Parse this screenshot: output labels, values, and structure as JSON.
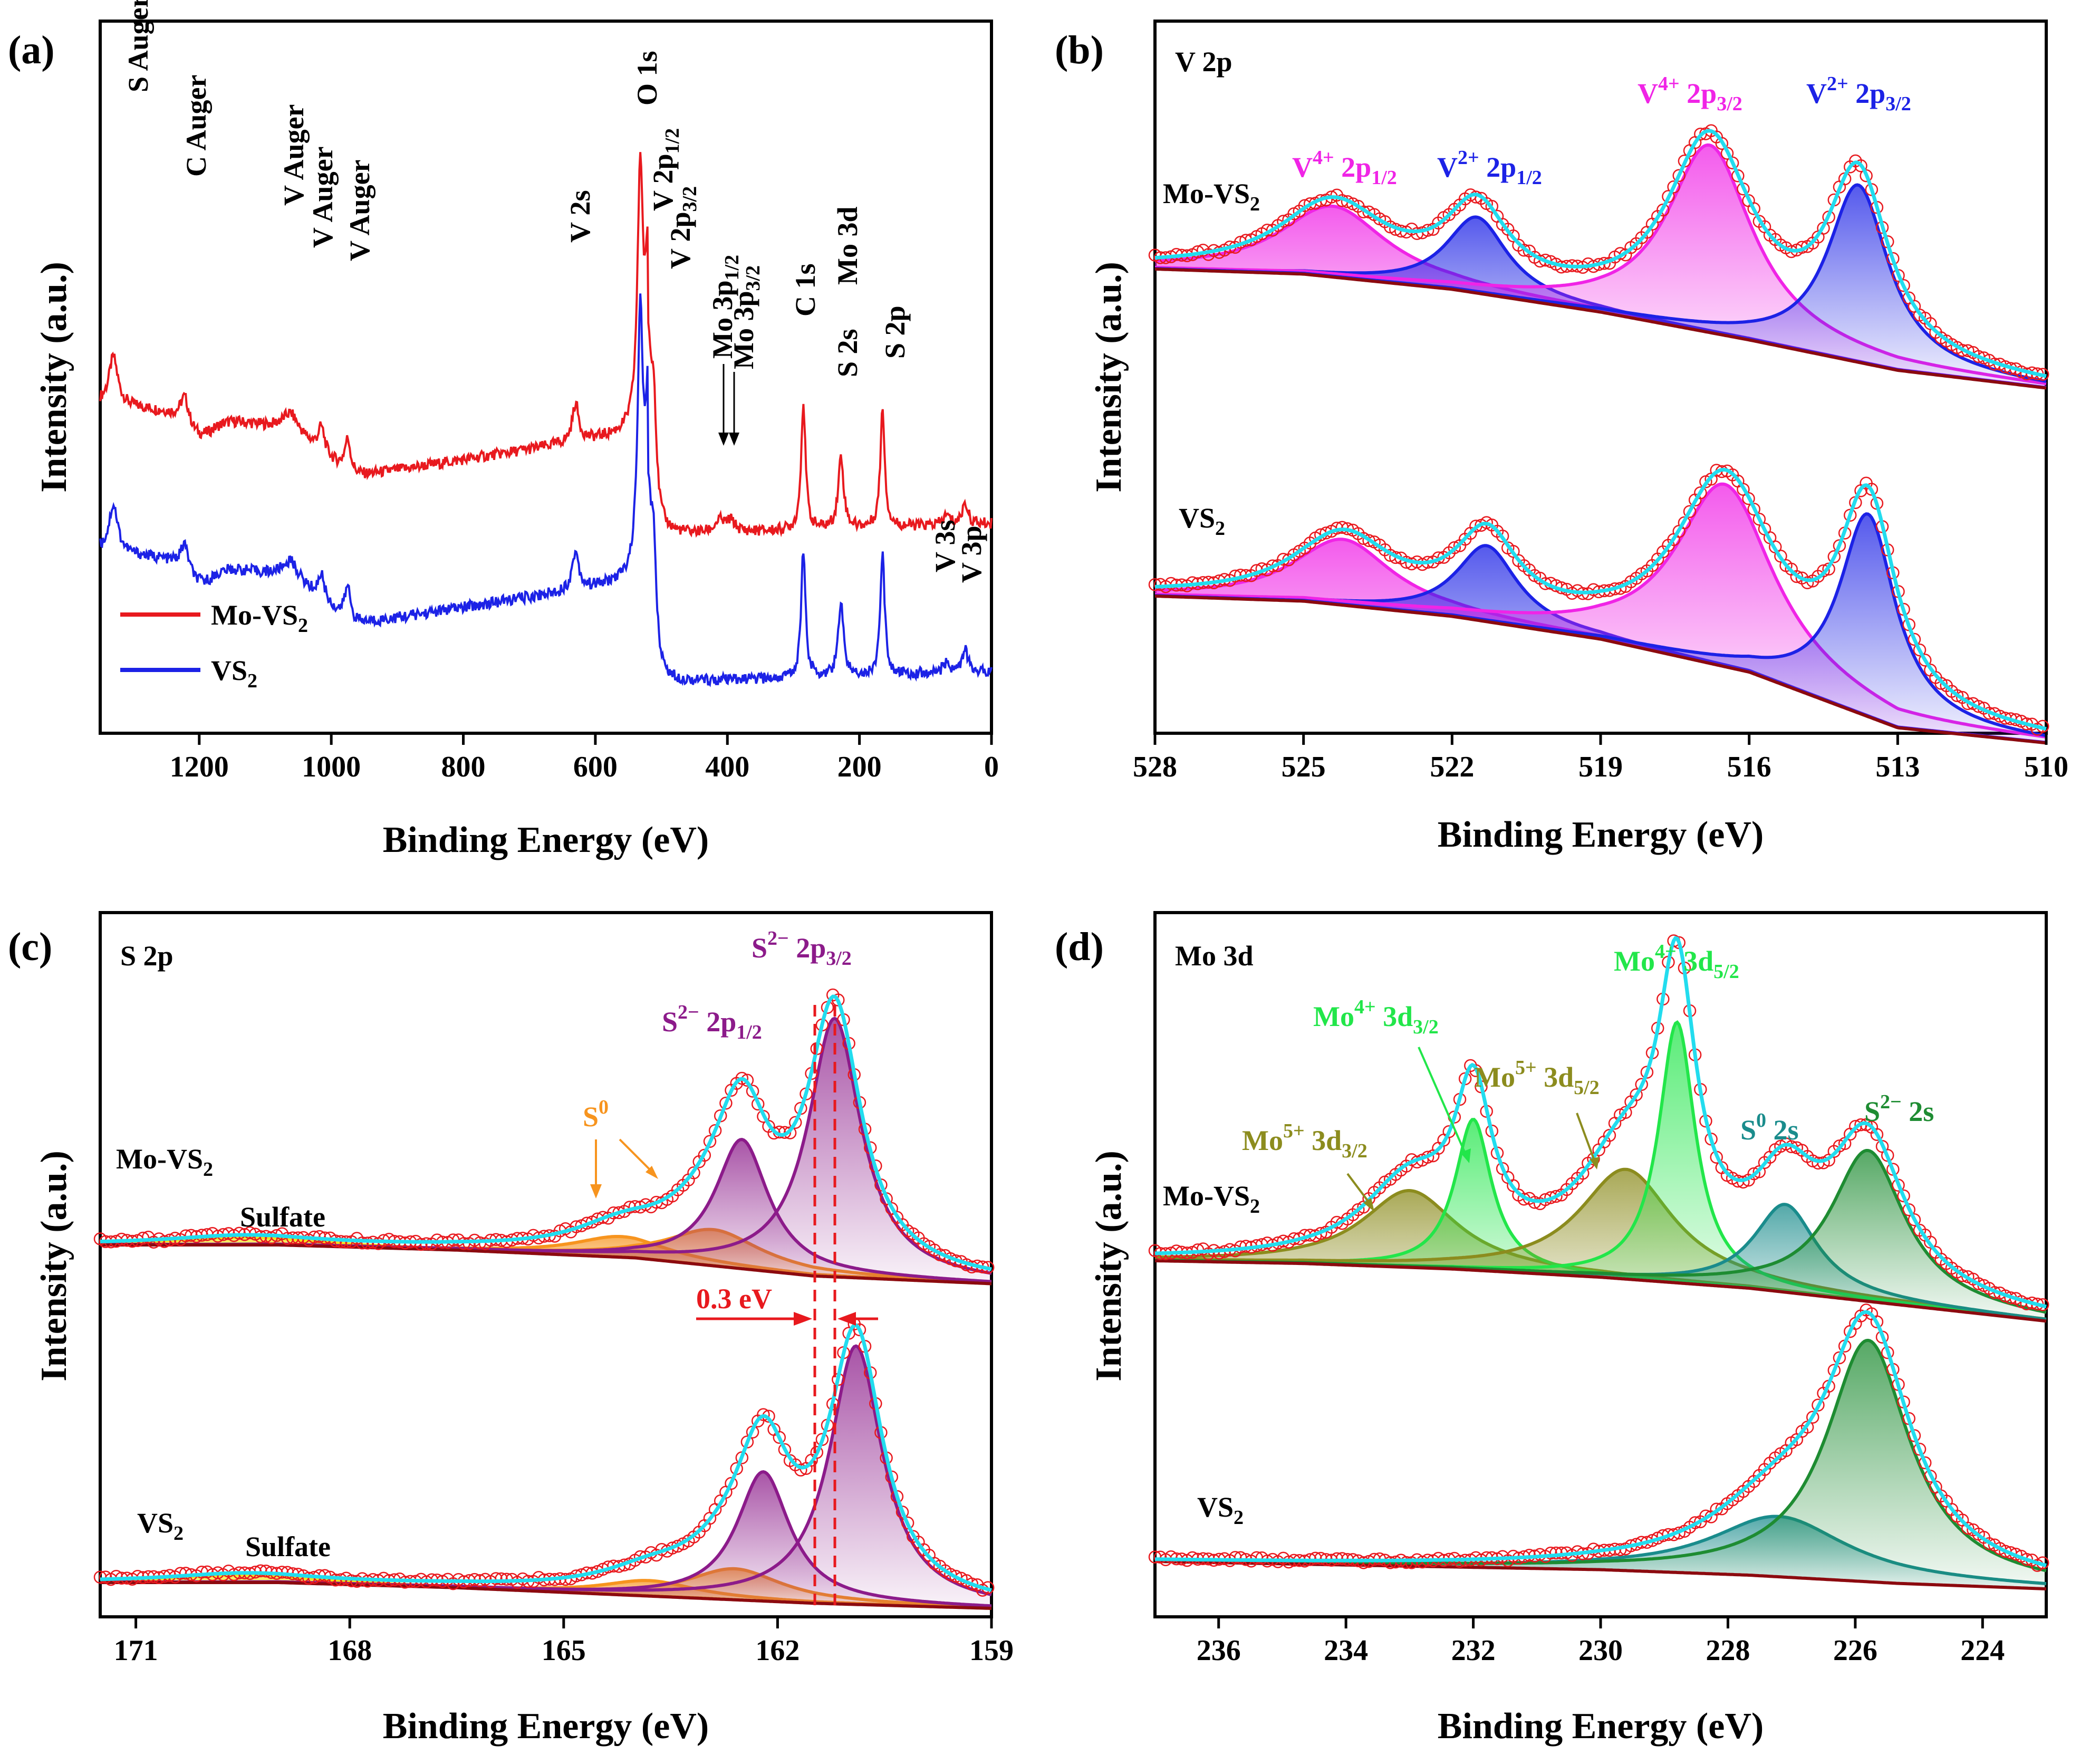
{
  "figure": {
    "panel_labels": [
      "(a)",
      "(b)",
      "(c)",
      "(d)"
    ]
  },
  "colors": {
    "red": "#e8191e",
    "blue": "#1c22e6",
    "cyan": "#22dcee",
    "wine": "#8c0a0f",
    "pink": "#f024e6",
    "purple": "#8c1b8a",
    "orange": "#f7941e",
    "yellow": "#f5e11a",
    "green": "#22e64a",
    "olive": "#8c8c1e",
    "teal": "#1a8c8c",
    "dkgreen": "#1e8c32"
  },
  "chart_data": [
    {
      "id": "a",
      "type": "line",
      "xlabel": "Binding Energy (eV)",
      "ylabel": "Intensity (a.u.)",
      "xlim": [
        1350,
        0
      ],
      "xticks": [
        1200,
        1000,
        800,
        600,
        400,
        200,
        0
      ],
      "series": [
        {
          "name": "Mo-VS2",
          "color": "#e8191e",
          "offset": 1.62
        },
        {
          "name": "VS2",
          "color": "#1c22e6",
          "offset": 0
        }
      ],
      "legend": [
        {
          "main": "Mo-VS",
          "sub": "2"
        },
        {
          "main": "VS",
          "sub": "2"
        }
      ],
      "annotations": [
        {
          "id": "s_auger",
          "text": "S Auger",
          "x": 1330
        },
        {
          "id": "c_auger",
          "text": "C Auger",
          "x": 1223
        },
        {
          "id": "v_aug1",
          "text": "V Auger",
          "x": 1060
        },
        {
          "id": "v_aug2",
          "text": "V Auger",
          "x": 1015
        },
        {
          "id": "v_aug3",
          "text": "V Auger",
          "x": 975
        },
        {
          "id": "v2s",
          "text": "V 2s",
          "x": 630
        },
        {
          "id": "o1s",
          "text": "O 1s",
          "x": 532
        },
        {
          "id": "v2p12",
          "text": "V 2p",
          "sub": "1/2",
          "x": 520
        },
        {
          "id": "v2p32",
          "text": "V 2p",
          "sub": "3/2",
          "x": 513
        },
        {
          "id": "mo3p12",
          "text": "Mo 3p",
          "sub": "1/2",
          "x": 412
        },
        {
          "id": "mo3p32",
          "text": "Mo 3p",
          "sub": "3/2",
          "x": 395
        },
        {
          "id": "c1s",
          "text": "C 1s",
          "x": 285
        },
        {
          "id": "s2s",
          "text": "S 2s",
          "x": 228
        },
        {
          "id": "mo3d",
          "text": "Mo 3d",
          "x": 230
        },
        {
          "id": "s2p",
          "text": "S 2p",
          "x": 163
        },
        {
          "id": "v3s",
          "text": "V 3s",
          "x": 68
        },
        {
          "id": "v3p",
          "text": "V 3p",
          "x": 40
        }
      ]
    },
    {
      "id": "b",
      "type": "line",
      "title": "V 2p",
      "xlabel": "Binding Energy (eV)",
      "ylabel": "Intensity (a.u.)",
      "xlim": [
        528,
        510
      ],
      "xticks": [
        528,
        525,
        522,
        519,
        516,
        513,
        510
      ],
      "samples": [
        {
          "name": "Mo-VS",
          "sub": "2",
          "offset": 1.15,
          "bg": [
            0.0,
            -0.02,
            -0.08,
            -0.17,
            -0.28,
            -0.4,
            -0.47
          ],
          "peaks": [
            {
              "c": 524.4,
              "h": 0.28,
              "w": 1.3,
              "color": "#f024e6",
              "name": "V4+ 2p1/2"
            },
            {
              "c": 521.5,
              "h": 0.3,
              "w": 0.75,
              "color": "#1c22e6",
              "name": "V2+ 2p1/2"
            },
            {
              "c": 516.8,
              "h": 0.74,
              "w": 1.05,
              "color": "#f024e6",
              "name": "V4+ 2p3/2"
            },
            {
              "c": 513.8,
              "h": 0.7,
              "w": 0.75,
              "color": "#1c22e6",
              "name": "V2+ 2p3/2"
            }
          ]
        },
        {
          "name": "VS",
          "sub": "2",
          "offset": 0,
          "bg": [
            0.0,
            -0.02,
            -0.08,
            -0.17,
            -0.3,
            -0.52,
            -0.58
          ],
          "peaks": [
            {
              "c": 524.2,
              "h": 0.26,
              "w": 1.2,
              "color": "#f024e6",
              "name": "V4+ 2p1/2"
            },
            {
              "c": 521.3,
              "h": 0.3,
              "w": 0.75,
              "color": "#1c22e6",
              "name": "V2+ 2p1/2"
            },
            {
              "c": 516.5,
              "h": 0.72,
              "w": 1.2,
              "color": "#f024e6",
              "name": "V4+ 2p3/2"
            },
            {
              "c": 513.6,
              "h": 0.8,
              "w": 0.7,
              "color": "#1c22e6",
              "name": "V2+ 2p3/2"
            }
          ]
        }
      ],
      "labels": [
        {
          "main": "V",
          "sup": "4+",
          "rest": " 2p",
          "sub": "1/2",
          "color": "#f024e6"
        },
        {
          "main": "V",
          "sup": "2+",
          "rest": " 2p",
          "sub": "1/2",
          "color": "#1c22e6"
        },
        {
          "main": "V",
          "sup": "4+",
          "rest": " 2p",
          "sub": "3/2",
          "color": "#f024e6"
        },
        {
          "main": "V",
          "sup": "2+",
          "rest": " 2p",
          "sub": "3/2",
          "color": "#1c22e6"
        }
      ]
    },
    {
      "id": "c",
      "type": "line",
      "title": "S 2p",
      "xlabel": "Binding Energy (eV)",
      "ylabel": "Intensity (a.u.)",
      "xlim": [
        171.5,
        159
      ],
      "xticks": [
        171,
        168,
        165,
        162,
        159
      ],
      "samples": [
        {
          "name": "Mo-VS",
          "sub": "2",
          "offset": 1.45,
          "bg": [
            0.0,
            0.0,
            -0.02,
            -0.05,
            -0.12,
            -0.15
          ],
          "peaks": [
            {
              "c": 169.5,
              "h": 0.03,
              "w": 1.2,
              "color": "#f5e11a",
              "name": "Sulfate"
            },
            {
              "c": 164.2,
              "h": 0.08,
              "w": 0.8,
              "color": "#f7941e",
              "name": "S0"
            },
            {
              "c": 162.9,
              "h": 0.14,
              "w": 0.8,
              "color": "#f7941e",
              "name": "S0"
            },
            {
              "c": 162.5,
              "h": 0.5,
              "w": 0.45,
              "color": "#8c1b8a",
              "name": "S2- 2p1/2"
            },
            {
              "c": 161.2,
              "h": 1.0,
              "w": 0.45,
              "color": "#8c1b8a",
              "name": "S2- 2p3/2"
            }
          ]
        },
        {
          "name": "VS",
          "sub": "2",
          "offset": 0,
          "bg": [
            0.0,
            0.0,
            -0.02,
            -0.05,
            -0.08,
            -0.1
          ],
          "peaks": [
            {
              "c": 169.5,
              "h": 0.03,
              "w": 1.2,
              "color": "#f5e11a",
              "name": "Sulfate"
            },
            {
              "c": 163.8,
              "h": 0.06,
              "w": 0.8,
              "color": "#f7941e",
              "name": "S0"
            },
            {
              "c": 162.6,
              "h": 0.12,
              "w": 0.8,
              "color": "#f7941e",
              "name": "S0"
            },
            {
              "c": 162.2,
              "h": 0.5,
              "w": 0.45,
              "color": "#8c1b8a",
              "name": "S2- 2p1/2"
            },
            {
              "c": 160.9,
              "h": 1.0,
              "w": 0.45,
              "color": "#8c1b8a",
              "name": "S2- 2p3/2"
            }
          ]
        }
      ],
      "labels": [
        {
          "id": "s0",
          "text": "S",
          "sup": "0",
          "color": "#f7941e"
        },
        {
          "id": "s2p12",
          "text": "S",
          "sup": "2−",
          "rest": " 2p",
          "sub": "1/2",
          "color": "#8c1b8a"
        },
        {
          "id": "s2p32",
          "text": "S",
          "sup": "2−",
          "rest": " 2p",
          "sub": "3/2",
          "color": "#8c1b8a"
        },
        {
          "id": "sulf1",
          "text": "Sulfate",
          "color": "#000"
        },
        {
          "id": "sulf2",
          "text": "Sulfate",
          "color": "#000"
        },
        {
          "id": "shift",
          "text": "0.3 eV",
          "color": "#e8191e"
        }
      ]
    },
    {
      "id": "d",
      "type": "line",
      "title": "Mo 3d",
      "xlabel": "Binding Energy (eV)",
      "ylabel": "Intensity (a.u.)",
      "xlim": [
        237,
        223
      ],
      "xticks": [
        236,
        234,
        232,
        230,
        228,
        226,
        224
      ],
      "samples": [
        {
          "name": "Mo-VS",
          "sub": "2",
          "offset": 1.25,
          "bg": [
            0.0,
            -0.01,
            -0.03,
            -0.06,
            -0.1,
            -0.16,
            -0.22
          ],
          "peaks": [
            {
              "c": 233.0,
              "h": 0.28,
              "w": 0.9,
              "color": "#8c8c1e",
              "name": "Mo5+ 3d3/2"
            },
            {
              "c": 232.0,
              "h": 0.55,
              "w": 0.35,
              "color": "#22e64a",
              "name": "Mo4+ 3d3/2"
            },
            {
              "c": 229.6,
              "h": 0.4,
              "w": 0.9,
              "color": "#8c8c1e",
              "name": "Mo5+ 3d5/2"
            },
            {
              "c": 228.8,
              "h": 0.95,
              "w": 0.35,
              "color": "#22e64a",
              "name": "Mo4+ 3d5/2"
            },
            {
              "c": 227.1,
              "h": 0.32,
              "w": 0.6,
              "color": "#1a8c8c",
              "name": "S0 2s"
            },
            {
              "c": 225.8,
              "h": 0.55,
              "w": 0.7,
              "color": "#1e8c32",
              "name": "S2- 2s"
            }
          ]
        },
        {
          "name": "VS",
          "sub": "2",
          "offset": 0,
          "bg": [
            0.0,
            -0.01,
            -0.02,
            -0.03,
            -0.05,
            -0.08,
            -0.1
          ],
          "peaks": [
            {
              "c": 227.2,
              "h": 0.22,
              "w": 1.3,
              "color": "#1a8c8c",
              "name": "S0 2s"
            },
            {
              "c": 225.8,
              "h": 0.88,
              "w": 0.8,
              "color": "#1e8c32",
              "name": "S2- 2s"
            }
          ]
        }
      ],
      "labels": [
        {
          "id": "mo5p32",
          "text": "Mo",
          "sup": "5+",
          "rest": " 3d",
          "sub": "3/2",
          "color": "#8c8c1e"
        },
        {
          "id": "mo4p32",
          "text": "Mo",
          "sup": "4+",
          "rest": " 3d",
          "sub": "3/2",
          "color": "#22e64a"
        },
        {
          "id": "mo5p52",
          "text": "Mo",
          "sup": "5+",
          "rest": " 3d",
          "sub": "5/2",
          "color": "#8c8c1e"
        },
        {
          "id": "mo4p52",
          "text": "Mo",
          "sup": "4+",
          "rest": " 3d",
          "sub": "5/2",
          "color": "#22e64a"
        },
        {
          "id": "s02s",
          "text": "S",
          "sup": "0",
          "rest": " 2s",
          "color": "#1a8c8c"
        },
        {
          "id": "s22s",
          "text": "S",
          "sup": "2−",
          "rest": " 2s",
          "color": "#1e8c32"
        }
      ]
    }
  ]
}
